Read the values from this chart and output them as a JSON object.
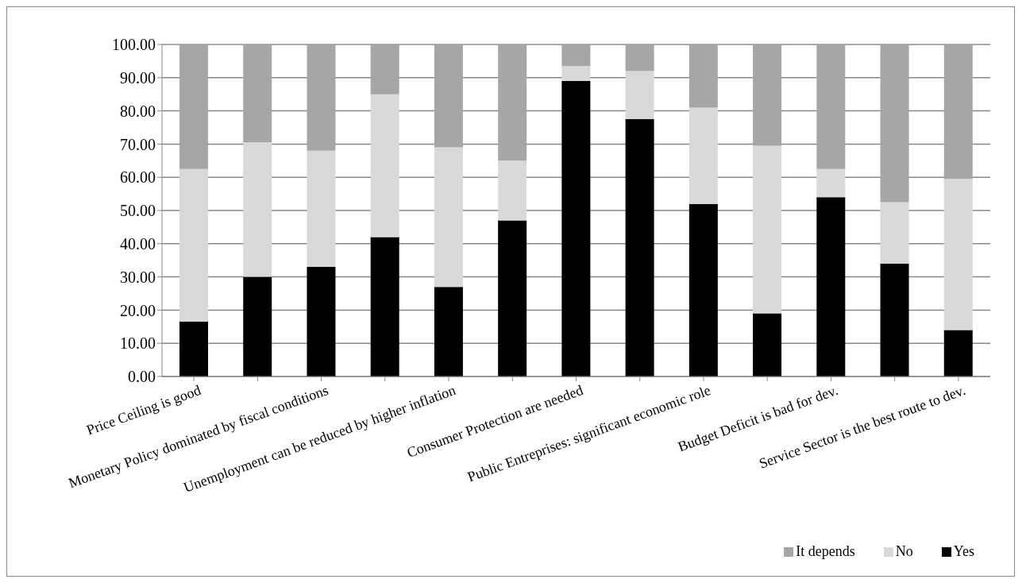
{
  "chart_data": {
    "type": "bar",
    "stacked": true,
    "categories": [
      "Price Ceiling is good",
      null,
      "Monetary Policy dominated by fiscal conditions",
      null,
      "Unemployment can be reduced by higher inflation",
      null,
      "Consumer Protection are needed",
      null,
      "Public Entreprises: significant economic role",
      null,
      "Budget Deficit is bad for dev.",
      null,
      "Service Sector is the best route to dev."
    ],
    "series": [
      {
        "name": "Yes",
        "color": "#000000",
        "values": [
          16.5,
          30,
          33,
          42,
          27,
          47,
          89,
          77.5,
          52,
          19,
          54,
          34,
          14
        ]
      },
      {
        "name": "No",
        "color": "#d9d9d9",
        "values": [
          46,
          40.5,
          35,
          43,
          42,
          18,
          4.5,
          14.5,
          29,
          50.5,
          8.5,
          18.5,
          45.5
        ]
      },
      {
        "name": "It depends",
        "color": "#a6a6a6",
        "values": [
          37.5,
          29.5,
          32,
          15,
          31,
          35,
          6.5,
          8,
          19,
          30.5,
          37.5,
          47.5,
          40.5
        ]
      }
    ],
    "ylim": [
      0,
      100
    ],
    "yticks": [
      {
        "value": 0,
        "label": "0.00"
      },
      {
        "value": 10,
        "label": "10.00"
      },
      {
        "value": 20,
        "label": "20.00"
      },
      {
        "value": 30,
        "label": "30.00"
      },
      {
        "value": 40,
        "label": "40.00"
      },
      {
        "value": 50,
        "label": "50.00"
      },
      {
        "value": 60,
        "label": "60.00"
      },
      {
        "value": 70,
        "label": "70.00"
      },
      {
        "value": 80,
        "label": "80.00"
      },
      {
        "value": 90,
        "label": "90.00"
      },
      {
        "value": 100,
        "label": "100.00"
      }
    ],
    "grid": "y",
    "legend": "bottom right"
  }
}
